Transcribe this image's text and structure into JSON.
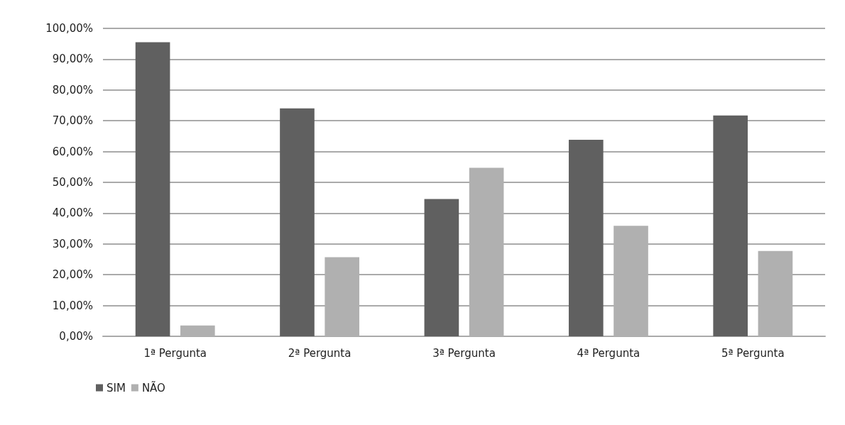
{
  "chart_data": {
    "type": "bar",
    "categories": [
      "1ª Pergunta",
      "2ª Pergunta",
      "3ª Pergunta",
      "4ª Pergunta",
      "5ª Pergunta"
    ],
    "series": [
      {
        "name": "SIM",
        "color": "#606060",
        "values": [
          95.5,
          74,
          44.6,
          63.8,
          71.7
        ]
      },
      {
        "name": "NÃO",
        "color": "#b0b0b0",
        "values": [
          3.5,
          25.7,
          54.7,
          35.9,
          27.7
        ]
      }
    ],
    "ylim": [
      0,
      100
    ],
    "yticks": [
      {
        "value": 0,
        "label": "0,00%"
      },
      {
        "value": 10,
        "label": "10,00%"
      },
      {
        "value": 20,
        "label": "20,00%"
      },
      {
        "value": 30,
        "label": "30,00%"
      },
      {
        "value": 40,
        "label": "40,00%"
      },
      {
        "value": 50,
        "label": "50,00%"
      },
      {
        "value": 60,
        "label": "60,00%"
      },
      {
        "value": 70,
        "label": "70,00%"
      },
      {
        "value": 80,
        "label": "80,00%"
      },
      {
        "value": 90,
        "label": "90,00%"
      },
      {
        "value": 100,
        "label": "100,00%"
      }
    ],
    "grid": "y",
    "legend": "bottom left"
  }
}
